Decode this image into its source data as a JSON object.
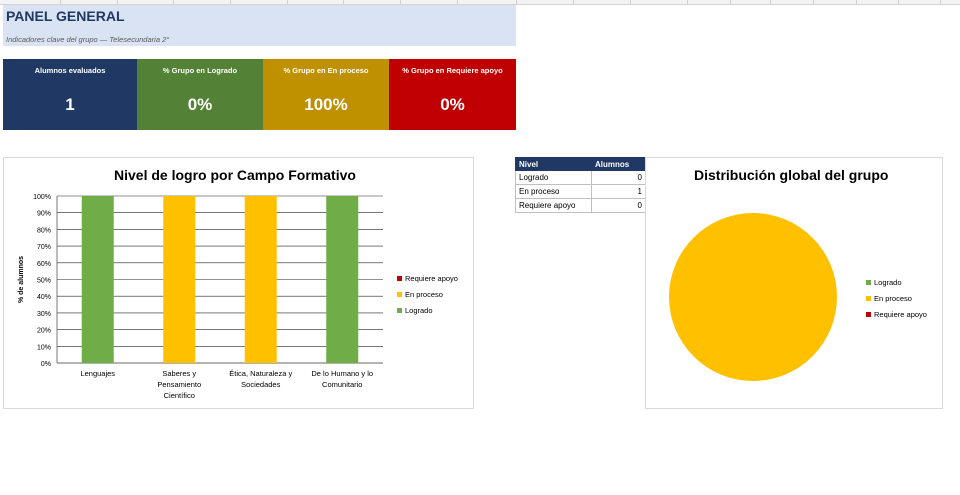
{
  "header": {
    "title": "PANEL GENERAL",
    "subtitle": "Indicadores clave del grupo — Telesecundaria 2°"
  },
  "kpis": [
    {
      "label": "Alumnos evaluados",
      "value": "1",
      "color": "#203864"
    },
    {
      "label": "% Grupo en Logrado",
      "value": "0%",
      "color": "#538135"
    },
    {
      "label": "% Grupo en En proceso",
      "value": "100%",
      "color": "#bf9000"
    },
    {
      "label": "% Grupo en Requiere apoyo",
      "value": "0%",
      "color": "#c00000"
    }
  ],
  "summary_table": {
    "headers": [
      "Nivel",
      "Alumnos"
    ],
    "rows": [
      {
        "nivel": "Logrado",
        "alumnos": "0"
      },
      {
        "nivel": "En proceso",
        "alumnos": "1"
      },
      {
        "nivel": "Requiere apoyo",
        "alumnos": "0"
      }
    ]
  },
  "colors": {
    "logrado": "#70ad47",
    "en_proceso": "#ffc000",
    "requiere_apoyo": "#c00000"
  },
  "chart_data": [
    {
      "type": "bar",
      "stacked": true,
      "title": "Nivel de logro por Campo Formativo",
      "xlabel": "",
      "ylabel": "% de alumnos",
      "ylim": [
        0,
        100
      ],
      "yticks": [
        "0%",
        "10%",
        "20%",
        "30%",
        "40%",
        "50%",
        "60%",
        "70%",
        "80%",
        "90%",
        "100%"
      ],
      "categories": [
        [
          "Lenguajes"
        ],
        [
          "Saberes y",
          "Pensamiento",
          "Científico"
        ],
        [
          "Ética, Naturaleza y",
          "Sociedades"
        ],
        [
          "De lo Humano y lo",
          "Comunitario"
        ]
      ],
      "series": [
        {
          "name": "Logrado",
          "values": [
            100,
            0,
            0,
            100
          ]
        },
        {
          "name": "En proceso",
          "values": [
            0,
            100,
            100,
            0
          ]
        },
        {
          "name": "Requiere apoyo",
          "values": [
            0,
            0,
            0,
            0
          ]
        }
      ],
      "legend_order": [
        "Requiere apoyo",
        "En proceso",
        "Logrado"
      ],
      "legend": "right",
      "grid": true
    },
    {
      "type": "pie",
      "title": "Distribución global del grupo",
      "labels": [
        "Logrado",
        "En proceso",
        "Requiere apoyo"
      ],
      "values": [
        0,
        1,
        0
      ],
      "legend": "right"
    }
  ]
}
